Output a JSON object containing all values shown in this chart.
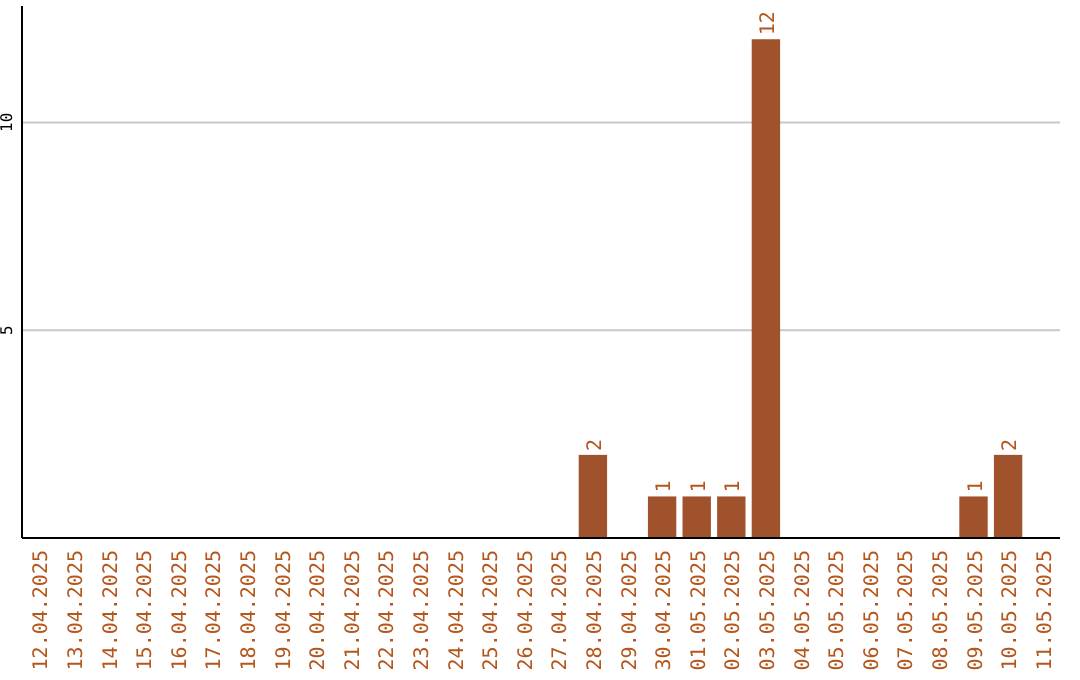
{
  "chart_data": {
    "type": "bar",
    "categories": [
      "12.04.2025",
      "13.04.2025",
      "14.04.2025",
      "15.04.2025",
      "16.04.2025",
      "17.04.2025",
      "18.04.2025",
      "19.04.2025",
      "20.04.2025",
      "21.04.2025",
      "22.04.2025",
      "23.04.2025",
      "24.04.2025",
      "25.04.2025",
      "26.04.2025",
      "27.04.2025",
      "28.04.2025",
      "29.04.2025",
      "30.04.2025",
      "01.05.2025",
      "02.05.2025",
      "03.05.2025",
      "04.05.2025",
      "05.05.2025",
      "06.05.2025",
      "07.05.2025",
      "08.05.2025",
      "09.05.2025",
      "10.05.2025",
      "11.05.2025"
    ],
    "values": [
      0,
      0,
      0,
      0,
      0,
      0,
      0,
      0,
      0,
      0,
      0,
      0,
      0,
      0,
      0,
      0,
      2,
      0,
      1,
      1,
      1,
      12,
      0,
      0,
      0,
      0,
      0,
      1,
      2,
      0
    ],
    "value_labels": [
      null,
      null,
      null,
      null,
      null,
      null,
      null,
      null,
      null,
      null,
      null,
      null,
      null,
      null,
      null,
      null,
      "2",
      null,
      "1",
      "1",
      "1",
      "12",
      null,
      null,
      null,
      null,
      null,
      "1",
      "2",
      null
    ],
    "color": "#a0522d",
    "ylim": [
      0,
      12.8
    ],
    "yticks": [
      5,
      10
    ],
    "grid": "y"
  }
}
